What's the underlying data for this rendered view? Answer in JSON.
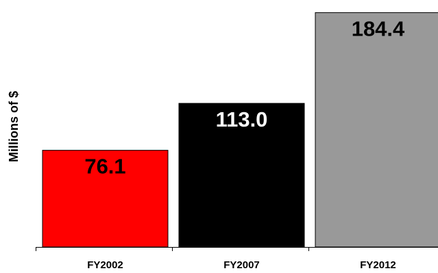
{
  "chart_data": {
    "type": "bar",
    "title": "",
    "xlabel": "",
    "ylabel": "Millions of $",
    "categories": [
      "FY2002",
      "FY2007",
      "FY2012"
    ],
    "values": [
      76.1,
      113.0,
      184.4
    ],
    "value_labels": [
      "76.1",
      "113.0",
      "184.4"
    ],
    "colors": [
      "#ff0000",
      "#000000",
      "#999999"
    ],
    "label_colors": [
      "#000000",
      "#ffffff",
      "#000000"
    ],
    "ylim": [
      0,
      190
    ],
    "grid": false,
    "legend": "none"
  }
}
